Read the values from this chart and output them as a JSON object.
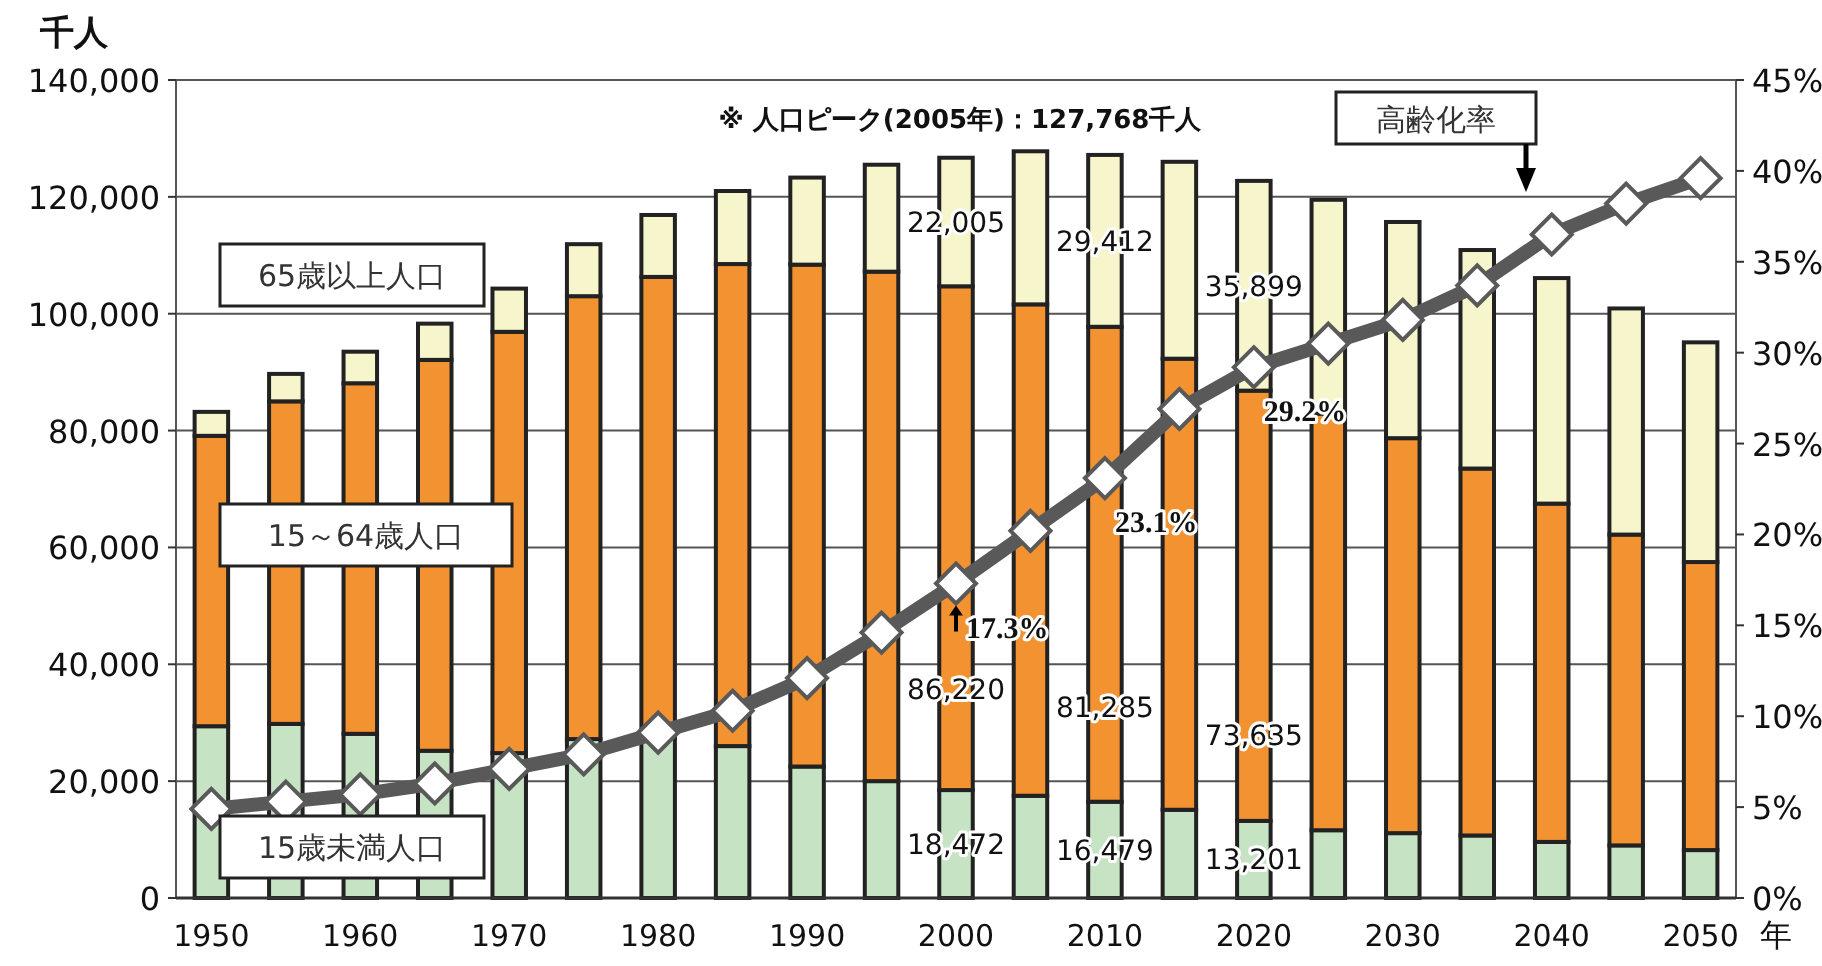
{
  "chart_data": {
    "type": "bar",
    "stacked": true,
    "ylabel": "千人",
    "xlabel": "年",
    "categories": [
      "1950",
      null,
      "1960",
      null,
      "1970",
      null,
      "1980",
      null,
      "1990",
      null,
      "2000",
      null,
      "2010",
      null,
      "2020",
      null,
      "2030",
      null,
      "2040",
      null,
      "2050"
    ],
    "series": [
      {
        "name": "15歳未満人口",
        "color": "#c6e3c4",
        "values": [
          29400,
          29800,
          28100,
          25200,
          24800,
          27200,
          27500,
          26000,
          22500,
          20000,
          18472,
          17500,
          16479,
          15100,
          13201,
          11600,
          11100,
          10700,
          9600,
          9000,
          8200
        ],
        "value_labels": [
          null,
          null,
          null,
          null,
          null,
          null,
          null,
          null,
          null,
          null,
          "18,472",
          null,
          "16,479",
          null,
          "13,201",
          null,
          null,
          null,
          null,
          null,
          null
        ]
      },
      {
        "name": "15～64歳人口",
        "color": "#f39230",
        "values": [
          49700,
          55200,
          60000,
          66900,
          72100,
          75800,
          78800,
          82500,
          85900,
          87200,
          86220,
          84100,
          81285,
          77200,
          73635,
          71300,
          67600,
          62800,
          57900,
          53200,
          49300
        ],
        "value_labels": [
          null,
          null,
          null,
          null,
          null,
          null,
          null,
          null,
          null,
          null,
          "86,220",
          null,
          "81,285",
          null,
          "73,635",
          null,
          null,
          null,
          null,
          null,
          null
        ]
      },
      {
        "name": "65歳以上人口",
        "color": "#f7f5cc",
        "values": [
          4100,
          4700,
          5400,
          6200,
          7400,
          8900,
          10600,
          12500,
          14900,
          18300,
          22005,
          26200,
          29412,
          33700,
          35899,
          36600,
          37000,
          37400,
          38600,
          38700,
          37600
        ],
        "value_labels": [
          null,
          null,
          null,
          null,
          null,
          null,
          null,
          null,
          null,
          null,
          "22,005",
          null,
          "29,412",
          null,
          "35,899",
          null,
          null,
          null,
          null,
          null,
          null
        ]
      },
      {
        "name": "高齢化率",
        "type": "line",
        "axis": "y2",
        "color": "#595959",
        "marker": "diamond",
        "values": [
          4.9,
          5.3,
          5.7,
          6.3,
          7.1,
          7.9,
          9.1,
          10.3,
          12.1,
          14.6,
          17.3,
          20.2,
          23.1,
          26.9,
          29.2,
          30.5,
          31.8,
          33.7,
          36.5,
          38.2,
          39.6
        ],
        "value_labels": [
          null,
          null,
          null,
          null,
          null,
          null,
          null,
          null,
          null,
          null,
          "17.3%",
          null,
          "23.1%",
          null,
          "29.2%",
          null,
          null,
          null,
          null,
          null,
          null
        ]
      }
    ],
    "ylim": [
      0,
      140000
    ],
    "yticks": [
      0,
      {
        "value": 20000,
        "label": "20,000"
      },
      {
        "value": 40000,
        "label": "40,000"
      },
      {
        "value": 60000,
        "label": "60,000"
      },
      {
        "value": 80000,
        "label": "80,000"
      },
      {
        "value": 100000,
        "label": "100,000"
      },
      {
        "value": 120000,
        "label": "120,000"
      },
      {
        "value": 140000,
        "label": "140,000"
      }
    ],
    "y2lim": [
      0,
      45
    ],
    "y2ticks": [
      {
        "value": 0,
        "label": "0%"
      },
      {
        "value": 5,
        "label": "5%"
      },
      {
        "value": 10,
        "label": "10%"
      },
      {
        "value": 15,
        "label": "15%"
      },
      {
        "value": 20,
        "label": "20%"
      },
      {
        "value": 25,
        "label": "25%"
      },
      {
        "value": 30,
        "label": "30%"
      },
      {
        "value": 35,
        "label": "35%"
      },
      {
        "value": 40,
        "label": "40%"
      },
      {
        "value": 45,
        "label": "45%"
      }
    ],
    "grid": "y",
    "annotations": [
      "※  人口ピーク(2005年)：127,768千人"
    ]
  }
}
